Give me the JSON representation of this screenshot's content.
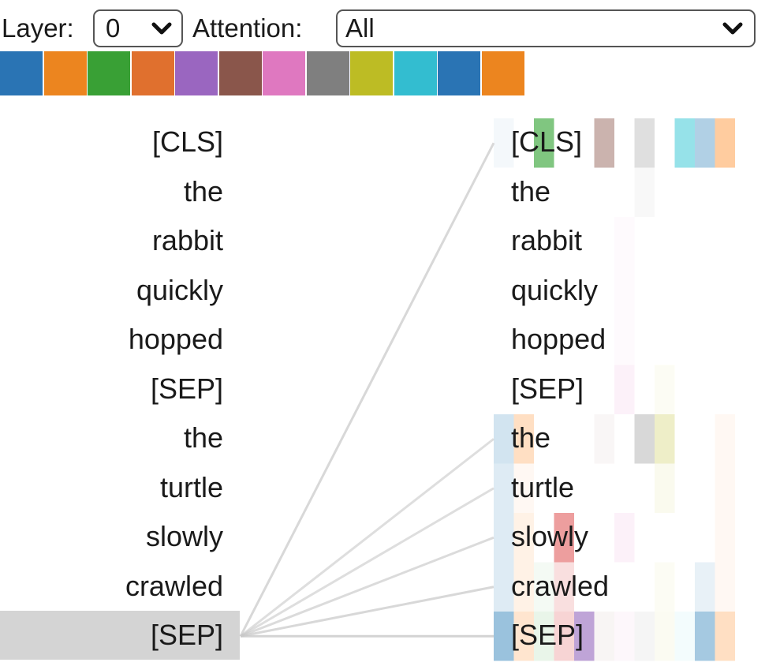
{
  "controls": {
    "layer_label": "Layer:",
    "layer_value": "0",
    "attention_label": "Attention:",
    "attention_value": "All"
  },
  "head_colors": [
    "#1f77b4",
    "#ff7f0e",
    "#2ca02c",
    "#d62728",
    "#9467bd",
    "#8c564b",
    "#e377c2",
    "#7f7f7f",
    "#bcbd22",
    "#17becf",
    "#1f77b4",
    "#ff7f0e"
  ],
  "head_swatch_colors": [
    "#2a74b4",
    "#ec851f",
    "#39a035",
    "#e0702e",
    "#9a66c0",
    "#8a564b",
    "#df78c0",
    "#7f7f7f",
    "#bdbc24",
    "#33bdd0",
    "#2a74b4",
    "#ec851f"
  ],
  "left_tokens": [
    "[CLS]",
    "the",
    "rabbit",
    "quickly",
    "hopped",
    "[SEP]",
    "the",
    "turtle",
    "slowly",
    "crawled",
    "[SEP]"
  ],
  "right_tokens": [
    "[CLS]",
    "the",
    "rabbit",
    "quickly",
    "hopped",
    "[SEP]",
    "the",
    "turtle",
    "slowly",
    "crawled",
    "[SEP]"
  ],
  "selected_left_index": 10,
  "attention_rows": [
    [
      0.05,
      0,
      0.6,
      0,
      0,
      0.45,
      0,
      0.25,
      0,
      0.45,
      0.35,
      0.4
    ],
    [
      0,
      0,
      0,
      0,
      0,
      0,
      0,
      0.05,
      0,
      0,
      0,
      0
    ],
    [
      0,
      0,
      0,
      0,
      0,
      0,
      0.04,
      0,
      0,
      0,
      0,
      0
    ],
    [
      0,
      0,
      0,
      0,
      0,
      0,
      0.04,
      0,
      0,
      0,
      0,
      0
    ],
    [
      0,
      0,
      0,
      0,
      0,
      0,
      0.04,
      0,
      0,
      0,
      0,
      0
    ],
    [
      0,
      0,
      0,
      0,
      0,
      0,
      0.1,
      0,
      0.05,
      0,
      0,
      0
    ],
    [
      0.2,
      0.25,
      0,
      0,
      0,
      0.05,
      0,
      0.3,
      0.25,
      0,
      0,
      0.05
    ],
    [
      0.15,
      0.05,
      0,
      0,
      0,
      0,
      0,
      0,
      0.08,
      0,
      0,
      0.05
    ],
    [
      0.15,
      0.1,
      0,
      0.45,
      0,
      0,
      0.1,
      0,
      0,
      0,
      0,
      0.05
    ],
    [
      0.15,
      0.1,
      0.05,
      0.15,
      0,
      0,
      0,
      0,
      0.05,
      0,
      0.1,
      0.05
    ],
    [
      0.45,
      0.2,
      0.1,
      0.2,
      0.6,
      0.06,
      0.06,
      0.08,
      0.06,
      0.05,
      0.4,
      0.25
    ]
  ]
}
